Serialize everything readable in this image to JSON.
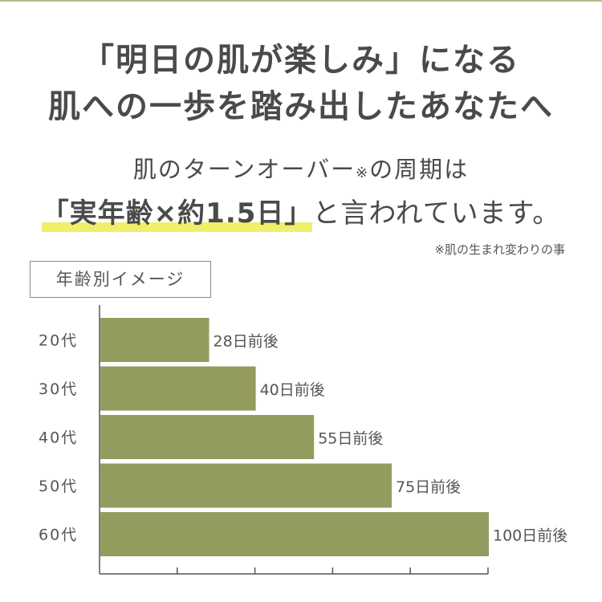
{
  "headline": {
    "line1": "「明日の肌が楽しみ」になる",
    "line2": "肌への一歩を踏み出したあなたへ"
  },
  "intro": {
    "line1_text": "肌のターンオーバー",
    "line1_mark": "※",
    "line1_suffix": "の周期は",
    "emphasis": "「実年齢×約1.5日」",
    "line2_suffix": "と言われています。",
    "footnote": "※肌の生まれ変わりの事"
  },
  "legend_box": "年齢別イメージ",
  "colors": {
    "bar": "#949b5e",
    "highlight": "#f0ef6a",
    "text": "#4a4a4a",
    "axis": "#555555"
  },
  "chart_data": {
    "type": "bar",
    "orientation": "horizontal",
    "categories": [
      "20代",
      "30代",
      "40代",
      "50代",
      "60代"
    ],
    "values": [
      28,
      40,
      55,
      75,
      100
    ],
    "value_labels": [
      "28日前後",
      "40日前後",
      "55日前後",
      "75日前後",
      "100日前後"
    ],
    "xlim": [
      0,
      100
    ],
    "x_ticks": 5,
    "grid": false
  }
}
